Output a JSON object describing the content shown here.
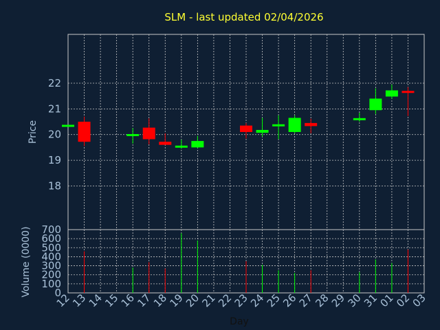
{
  "chart_data": {
    "type": "candlestick",
    "title": "SLM - last updated 02/04/2026",
    "xlabel": "Day",
    "price_panel": {
      "ylabel": "Price",
      "ylim": [
        16.3,
        23.9
      ],
      "yticks": [
        18,
        19,
        20,
        21,
        22
      ],
      "grid": true
    },
    "volume_panel": {
      "ylabel": "Volume (0000)",
      "ylim": [
        0,
        700
      ],
      "yticks": [
        0,
        100,
        200,
        300,
        400,
        500,
        600,
        700
      ],
      "grid": true
    },
    "x_ticks": [
      "12",
      "13",
      "14",
      "15",
      "16",
      "17",
      "18",
      "19",
      "20",
      "21",
      "22",
      "23",
      "24",
      "25",
      "26",
      "27",
      "28",
      "29",
      "30",
      "31",
      "01",
      "02",
      "03"
    ],
    "candles": [
      {
        "day": "12",
        "open": 20.3,
        "high": 20.38,
        "low": 20.3,
        "close": 20.38,
        "volume": 0
      },
      {
        "day": "13",
        "open": 20.5,
        "high": 20.7,
        "low": 19.55,
        "close": 19.72,
        "volume": 460
      },
      {
        "day": "16",
        "open": 19.96,
        "high": 20.25,
        "low": 19.65,
        "close": 20.02,
        "volume": 280
      },
      {
        "day": "17",
        "open": 20.27,
        "high": 20.63,
        "low": 19.62,
        "close": 19.82,
        "volume": 340
      },
      {
        "day": "18",
        "open": 19.72,
        "high": 20.05,
        "low": 19.6,
        "close": 19.6,
        "volume": 270
      },
      {
        "day": "19",
        "open": 19.5,
        "high": 19.8,
        "low": 19.45,
        "close": 19.57,
        "volume": 660
      },
      {
        "day": "20",
        "open": 19.5,
        "high": 19.95,
        "low": 19.48,
        "close": 19.75,
        "volume": 580
      },
      {
        "day": "23",
        "open": 20.35,
        "high": 20.45,
        "low": 19.85,
        "close": 20.1,
        "volume": 350
      },
      {
        "day": "24",
        "open": 20.07,
        "high": 20.65,
        "low": 19.92,
        "close": 20.18,
        "volume": 310
      },
      {
        "day": "25",
        "open": 20.38,
        "high": 20.75,
        "low": 19.82,
        "close": 20.4,
        "volume": 250
      },
      {
        "day": "26",
        "open": 20.1,
        "high": 20.75,
        "low": 20.05,
        "close": 20.65,
        "volume": 220
      },
      {
        "day": "27",
        "open": 20.45,
        "high": 20.62,
        "low": 20.05,
        "close": 20.33,
        "volume": 250
      },
      {
        "day": "30",
        "open": 20.6,
        "high": 20.85,
        "low": 20.5,
        "close": 20.64,
        "volume": 230
      },
      {
        "day": "31",
        "open": 20.95,
        "high": 21.8,
        "low": 20.8,
        "close": 21.4,
        "volume": 370
      },
      {
        "day": "01",
        "open": 21.48,
        "high": 21.95,
        "low": 21.4,
        "close": 21.72,
        "volume": 330
      },
      {
        "day": "02",
        "open": 21.7,
        "high": 21.85,
        "low": 20.72,
        "close": 21.62,
        "volume": 480
      }
    ],
    "colors": {
      "background": "#0f1f33",
      "up": "#00ff00",
      "down": "#ff0000",
      "grid": "#c8c8c8",
      "title": "#ffff33",
      "tick_text": "#a9c1d8"
    }
  }
}
